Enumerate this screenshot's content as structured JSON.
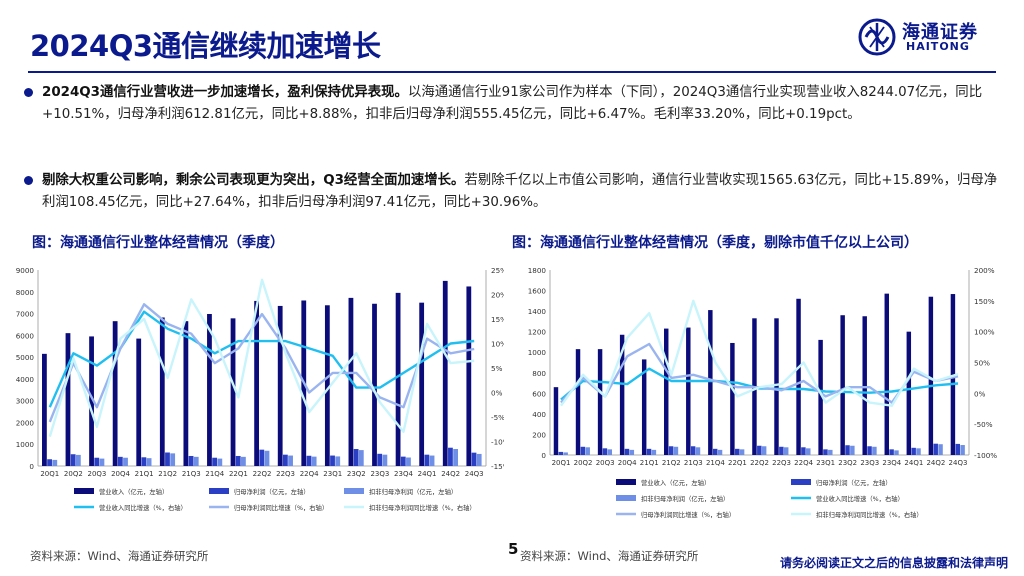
{
  "header": {
    "title": "2024Q3通信继续加速增长",
    "logo_cn": "海通证券",
    "logo_en": "HAITONG"
  },
  "bullets": [
    {
      "bold": "2024Q3通信行业营收进一步加速增长，盈利保持优异表现。",
      "text": "以海通通信行业91家公司作为样本（下同），2024Q3通信行业实现营业收入8244.07亿元，同比+10.51%，归母净利润612.81亿元，同比+8.88%，扣非后归母净利润555.45亿元，同比+6.47%。毛利率33.20%，同比+0.19pct。"
    },
    {
      "bold": "剔除大权重公司影响，剩余公司表现更为突出，Q3经营全面加速增长。",
      "text": "若剔除千亿以上市值公司影响，通信行业营收实现1565.63亿元，同比+15.89%，归母净利润108.45亿元，同比+27.64%，扣非后归母净利润97.41亿元，同比+30.96%。"
    }
  ],
  "captions": {
    "left": "图：海通通信行业整体经营情况（季度）",
    "right": "图：海通通信行业整体经营情况（季度，剔除市值千亿以上公司）"
  },
  "footer": {
    "source_left": "资料来源：Wind、海通证券研究所",
    "source_right": "资料来源：Wind、海通证券研究所",
    "page": "5",
    "disclaimer": "请务必阅读正文之后的信息披露和法律声明"
  },
  "colors": {
    "brand": "#0b1a8c",
    "revenue": "#0b0b7a",
    "profit": "#2b3fc4",
    "profit_ex": "#6f8fe6",
    "rev_yoy": "#20bff0",
    "profit_yoy": "#9ab4f0",
    "profit_ex_yoy": "#c8f4fb"
  },
  "chart_data": [
    {
      "type": "bar",
      "categories": [
        "20Q1",
        "20Q2",
        "20Q3",
        "20Q4",
        "21Q1",
        "21Q2",
        "21Q3",
        "21Q4",
        "22Q1",
        "22Q2",
        "22Q3",
        "22Q4",
        "23Q1",
        "23Q2",
        "23Q3",
        "23Q4",
        "24Q1",
        "24Q2",
        "24Q3"
      ],
      "ylim": [
        0,
        9000
      ],
      "y_ticks": [
        0,
        1000,
        2000,
        3000,
        4000,
        5000,
        6000,
        7000,
        8000,
        9000
      ],
      "y2lim": [
        -15,
        25
      ],
      "y2_ticks": [
        -15,
        -10,
        -5,
        0,
        5,
        10,
        15,
        20,
        25
      ],
      "y2_unit": "%",
      "series": [
        {
          "name": "营业收入（亿元，左轴）",
          "kind": "bar",
          "axis": "left",
          "color": "#0b0b7a",
          "values": [
            5150,
            6100,
            5950,
            6650,
            5850,
            6820,
            6650,
            6980,
            6780,
            7580,
            7350,
            7600,
            7380,
            7720,
            7450,
            7950,
            7500,
            8500,
            8244
          ]
        },
        {
          "name": "归母净利润（亿元，左轴）",
          "kind": "bar",
          "axis": "left",
          "color": "#2b3fc4",
          "values": [
            310,
            540,
            380,
            420,
            400,
            620,
            460,
            380,
            460,
            750,
            520,
            470,
            480,
            780,
            560,
            430,
            520,
            840,
            613
          ]
        },
        {
          "name": "扣非归母净利润（亿元，左轴）",
          "kind": "bar",
          "axis": "left",
          "color": "#6f8fe6",
          "values": [
            280,
            510,
            340,
            380,
            360,
            580,
            420,
            340,
            420,
            700,
            480,
            430,
            440,
            730,
            520,
            390,
            480,
            780,
            555
          ]
        },
        {
          "name": "营业收入同比增速（%，右轴）",
          "kind": "line",
          "axis": "right",
          "color": "#20bff0",
          "values": [
            -3,
            8,
            5.5,
            9,
            16.5,
            13,
            11,
            8,
            10.5,
            10.5,
            10.5,
            9,
            7.5,
            1,
            1,
            4,
            7,
            10,
            10.51
          ]
        },
        {
          "name": "归母净利润同比增速（%，右轴）",
          "kind": "line",
          "axis": "right",
          "color": "#9ab4f0",
          "values": [
            -6,
            6,
            -3,
            9,
            18,
            14,
            12,
            6,
            9,
            16,
            9,
            0,
            4,
            4,
            -1,
            -3,
            11,
            8,
            8.88
          ]
        },
        {
          "name": "扣非归母净利润同比增速（%，右轴）",
          "kind": "line",
          "axis": "right",
          "color": "#c8f4fb",
          "values": [
            -9,
            7,
            -7,
            11,
            15,
            3,
            19,
            11,
            -1,
            23,
            8,
            -4,
            2,
            8,
            -2,
            -8,
            14,
            6,
            6.47
          ]
        }
      ]
    },
    {
      "type": "bar",
      "categories": [
        "20Q1",
        "20Q2",
        "20Q3",
        "20Q4",
        "21Q1",
        "21Q2",
        "21Q3",
        "21Q4",
        "22Q1",
        "22Q2",
        "22Q3",
        "22Q4",
        "23Q1",
        "23Q2",
        "23Q3",
        "23Q4",
        "24Q1",
        "24Q2",
        "24Q3"
      ],
      "ylim": [
        0,
        1800
      ],
      "y_ticks": [
        0,
        200,
        400,
        600,
        800,
        1000,
        1200,
        1400,
        1600,
        1800
      ],
      "y2lim": [
        -100,
        200
      ],
      "y2_ticks": [
        -100,
        -50,
        0,
        50,
        100,
        150,
        200
      ],
      "y2_unit": "%",
      "series": [
        {
          "name": "营业收入（亿元，左轴）",
          "kind": "bar",
          "axis": "left",
          "color": "#0b0b7a",
          "values": [
            660,
            1030,
            1030,
            1170,
            930,
            1230,
            1240,
            1410,
            1090,
            1330,
            1330,
            1520,
            1120,
            1360,
            1350,
            1570,
            1200,
            1540,
            1566
          ]
        },
        {
          "name": "归母净利润（亿元，左轴）",
          "kind": "bar",
          "axis": "left",
          "color": "#2b3fc4",
          "values": [
            30,
            80,
            65,
            60,
            60,
            85,
            85,
            60,
            60,
            90,
            80,
            75,
            55,
            95,
            85,
            55,
            70,
            110,
            108
          ]
        },
        {
          "name": "扣非归母净利润（亿元，左轴）",
          "kind": "bar",
          "axis": "left",
          "color": "#6f8fe6",
          "values": [
            25,
            75,
            55,
            50,
            50,
            80,
            75,
            50,
            55,
            85,
            75,
            65,
            50,
            90,
            80,
            45,
            65,
            105,
            97
          ]
        },
        {
          "name": "营业收入同比增速（%，右轴）",
          "kind": "line",
          "axis": "right",
          "color": "#20bff0",
          "values": [
            -10,
            20,
            18,
            15,
            40,
            20,
            20,
            20,
            17,
            8,
            7,
            7,
            3,
            2,
            1,
            3,
            8,
            13,
            15.89
          ]
        },
        {
          "name": "归母净利润同比增速（%，右轴）",
          "kind": "line",
          "axis": "right",
          "color": "#9ab4f0",
          "values": [
            -15,
            25,
            -5,
            60,
            80,
            25,
            30,
            20,
            10,
            10,
            5,
            20,
            -5,
            10,
            10,
            -15,
            35,
            20,
            27.64
          ]
        },
        {
          "name": "扣非归母净利润同比增速（%，右轴）",
          "kind": "line",
          "axis": "right",
          "color": "#c8f4fb",
          "values": [
            -20,
            30,
            -5,
            90,
            130,
            30,
            150,
            50,
            -5,
            10,
            15,
            50,
            -15,
            10,
            -15,
            -20,
            40,
            20,
            30.96
          ]
        }
      ]
    }
  ]
}
